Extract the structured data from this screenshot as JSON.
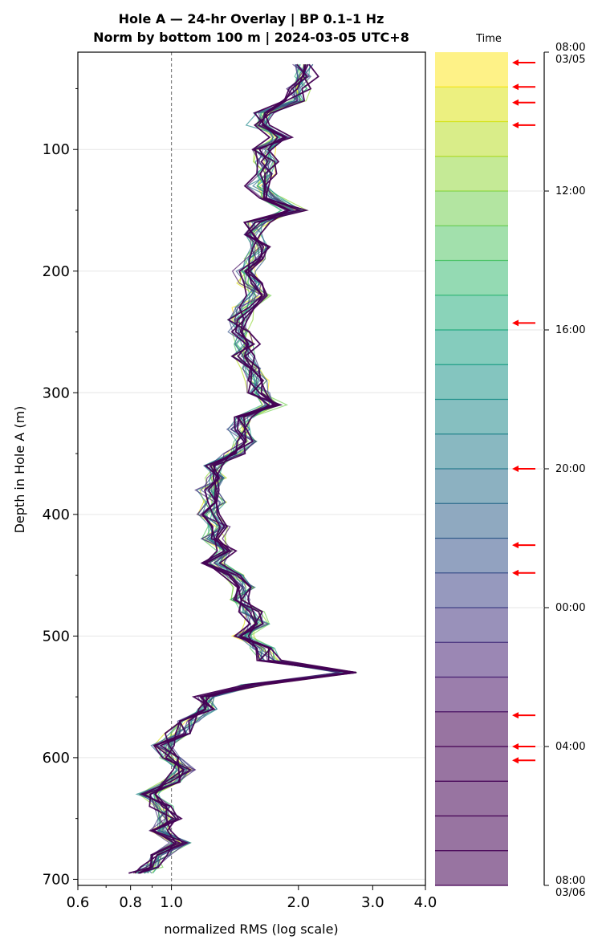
{
  "chart_data": {
    "type": "line",
    "title_line1": "Hole A — 24-hr Overlay  |  BP 0.1–1 Hz",
    "title_line2": "Norm by bottom 100 m  |  2024-03-05 UTC+8",
    "xlabel": "normalized RMS  (log scale)",
    "ylabel": "Depth in Hole A (m)",
    "x_scale": "log",
    "xlim": [
      0.6,
      4.0
    ],
    "ylim": [
      705,
      20
    ],
    "y_inverted": true,
    "x_ticks": [
      0.6,
      0.8,
      1.0,
      2.0,
      3.0,
      4.0
    ],
    "x_tick_labels": [
      "0.6",
      "0.8",
      "1.0",
      "2.0",
      "3.0",
      "4.0"
    ],
    "y_ticks": [
      100,
      200,
      300,
      400,
      500,
      600,
      700
    ],
    "y_tick_labels": [
      "100",
      "200",
      "300",
      "400",
      "500",
      "600",
      "700"
    ],
    "reference_line_x": 1.0,
    "grid": "horizontal",
    "n_series": 24,
    "colormap": "viridis (yellow = early, purple = late)",
    "depth": [
      30,
      40,
      50,
      60,
      70,
      80,
      90,
      100,
      110,
      120,
      130,
      140,
      150,
      160,
      170,
      180,
      190,
      200,
      210,
      220,
      230,
      240,
      250,
      260,
      270,
      280,
      290,
      300,
      310,
      320,
      330,
      340,
      350,
      360,
      370,
      380,
      390,
      400,
      410,
      420,
      430,
      440,
      450,
      460,
      470,
      480,
      490,
      500,
      510,
      520,
      530,
      540,
      550,
      560,
      570,
      580,
      590,
      600,
      610,
      620,
      630,
      640,
      650,
      660,
      670,
      680,
      690,
      695
    ],
    "baseline_rms": [
      2.05,
      2.1,
      2.0,
      1.95,
      1.65,
      1.6,
      1.8,
      1.65,
      1.68,
      1.7,
      1.6,
      1.72,
      1.95,
      1.6,
      1.55,
      1.62,
      1.58,
      1.5,
      1.55,
      1.6,
      1.5,
      1.45,
      1.45,
      1.5,
      1.48,
      1.55,
      1.6,
      1.62,
      1.75,
      1.5,
      1.45,
      1.5,
      1.4,
      1.25,
      1.3,
      1.22,
      1.28,
      1.22,
      1.3,
      1.25,
      1.35,
      1.25,
      1.4,
      1.5,
      1.45,
      1.55,
      1.62,
      1.5,
      1.65,
      1.7,
      2.6,
      1.55,
      1.2,
      1.22,
      1.1,
      1.05,
      0.95,
      1.0,
      1.08,
      1.0,
      0.88,
      0.95,
      0.98,
      0.95,
      1.05,
      0.95,
      0.9,
      0.85
    ],
    "legend": {
      "title": "Time",
      "time_labels": [
        "08:00\n03/05",
        "12:00",
        "16:00",
        "20:00",
        "00:00",
        "04:00",
        "08:00\n03/06"
      ],
      "n_bands": 24,
      "band_colors": [
        "#fde725",
        "#dde318",
        "#bade28",
        "#95d840",
        "#75d054",
        "#56c667",
        "#3dbc74",
        "#29af7f",
        "#20a386",
        "#1f968b",
        "#238a8d",
        "#287d8e",
        "#2d718e",
        "#33638d",
        "#39558c",
        "#404688",
        "#453781",
        "#482576",
        "#481467",
        "#440154",
        "#440154",
        "#440154",
        "#440154",
        "#440154"
      ],
      "arrow_hours": [
        0.3,
        1.0,
        1.45,
        2.1,
        7.8,
        12.0,
        14.2,
        15.0,
        19.1,
        20.0,
        20.4
      ],
      "arrow_color": "#ff0000"
    }
  }
}
